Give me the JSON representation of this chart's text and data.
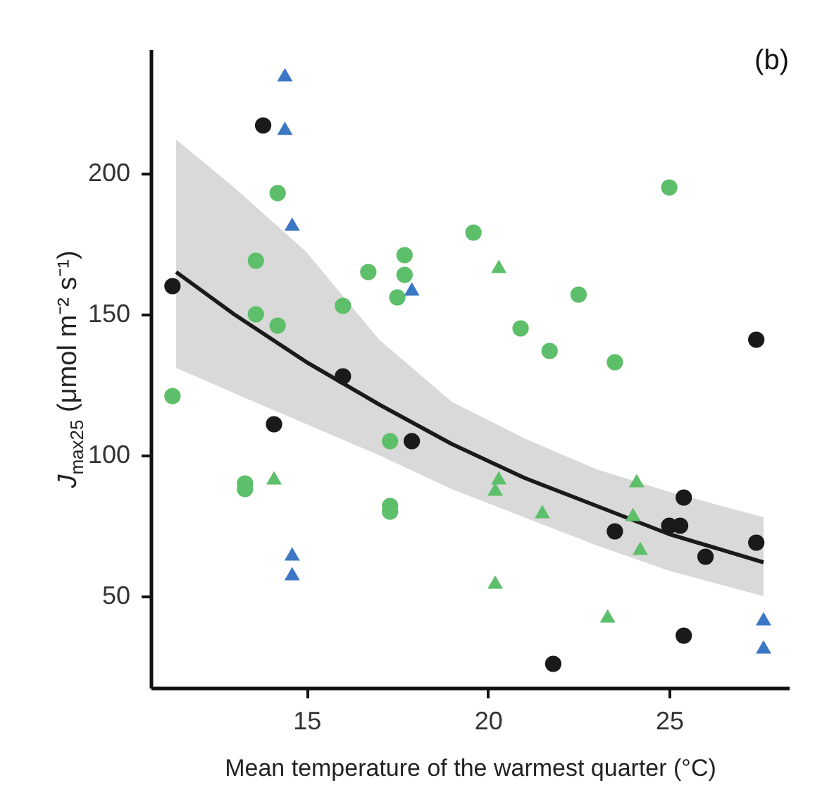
{
  "chart_data": {
    "type": "scatter",
    "title": "(b)",
    "xlabel": "Mean temperature of the warmest quarter (°C)",
    "ylabel": "J$_{max25}$ (μmol m⁻² s⁻¹)",
    "xlim": [
      10.7,
      28.3
    ],
    "xticks": [
      15,
      20,
      25
    ],
    "ylim": [
      17.5,
      244
    ],
    "yticks": [
      50,
      100,
      150,
      200
    ],
    "series": [
      {
        "type": "line",
        "color": "#1a1a1a",
        "marker": "none",
        "x": [
          11.4,
          13,
          15,
          17,
          19,
          21,
          23,
          25,
          27.6
        ],
        "values": [
          165,
          150,
          133,
          118,
          104,
          92,
          82,
          72,
          62
        ],
        "lower": [
          131,
          122,
          111,
          100,
          88,
          78,
          68,
          59,
          50
        ],
        "upper": [
          212,
          195,
          172,
          141,
          119,
          106,
          95,
          87,
          78
        ]
      },
      {
        "color": "#1a1a1a",
        "marker": "circle",
        "x": [
          13.8,
          11.3,
          16.0,
          14.1,
          17.9,
          27.4,
          25.4,
          23.5,
          25.0,
          25.3,
          27.4,
          26.0,
          25.4,
          21.8
        ],
        "values": [
          217,
          160,
          128,
          111,
          105,
          141,
          85,
          73,
          75,
          75,
          69,
          64,
          36,
          26
        ]
      },
      {
        "color": "#5dbf6a",
        "marker": "circle",
        "x": [
          14.2,
          19.6,
          13.6,
          17.7,
          16.7,
          17.7,
          17.5,
          16.0,
          13.6,
          14.2,
          11.3,
          25.0,
          22.5,
          20.9,
          21.7,
          23.5,
          17.3,
          13.3,
          13.3,
          17.3,
          17.3
        ],
        "values": [
          193,
          179,
          169,
          171,
          165,
          164,
          156,
          153,
          150,
          146,
          121,
          195,
          157,
          145,
          137,
          133,
          105,
          90,
          88,
          82,
          80
        ]
      },
      {
        "color": "#5dbf6a",
        "marker": "triangle",
        "x": [
          20.3,
          14.1,
          20.3,
          20.2,
          24.1,
          21.5,
          24.0,
          24.2,
          20.2,
          23.3
        ],
        "values": [
          167,
          92,
          92,
          88,
          91,
          80,
          79,
          67,
          55,
          43
        ]
      },
      {
        "color": "#3b77c4",
        "marker": "triangle",
        "x": [
          14.4,
          14.4,
          14.6,
          17.9,
          14.6,
          14.6,
          27.6,
          27.6
        ],
        "values": [
          235,
          216,
          182,
          159,
          65,
          58,
          42,
          32
        ]
      }
    ]
  }
}
